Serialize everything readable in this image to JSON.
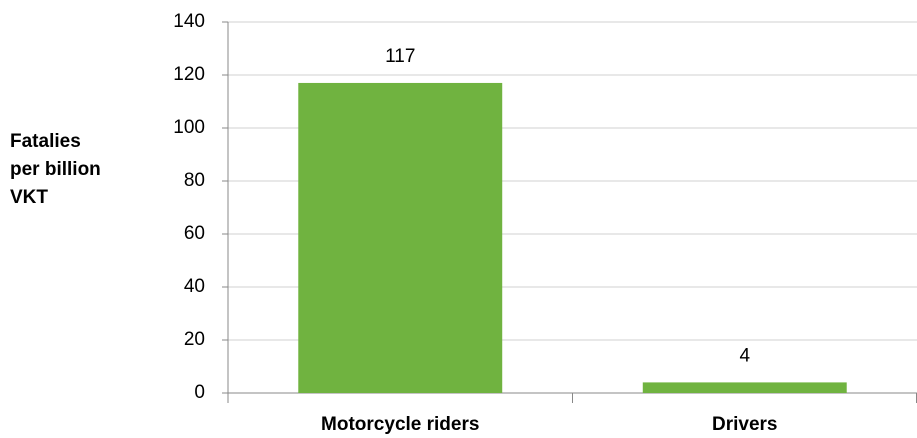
{
  "chart_data": {
    "type": "bar",
    "y_label_lines": [
      "Fatalies",
      "per billion",
      "VKT"
    ],
    "categories": [
      "Motorcycle riders",
      "Drivers"
    ],
    "values": [
      117,
      4
    ],
    "color": "#70b340",
    "ylim": [
      0,
      140
    ],
    "yticks": [
      0,
      20,
      40,
      60,
      80,
      100,
      120,
      140
    ],
    "grid": true
  }
}
